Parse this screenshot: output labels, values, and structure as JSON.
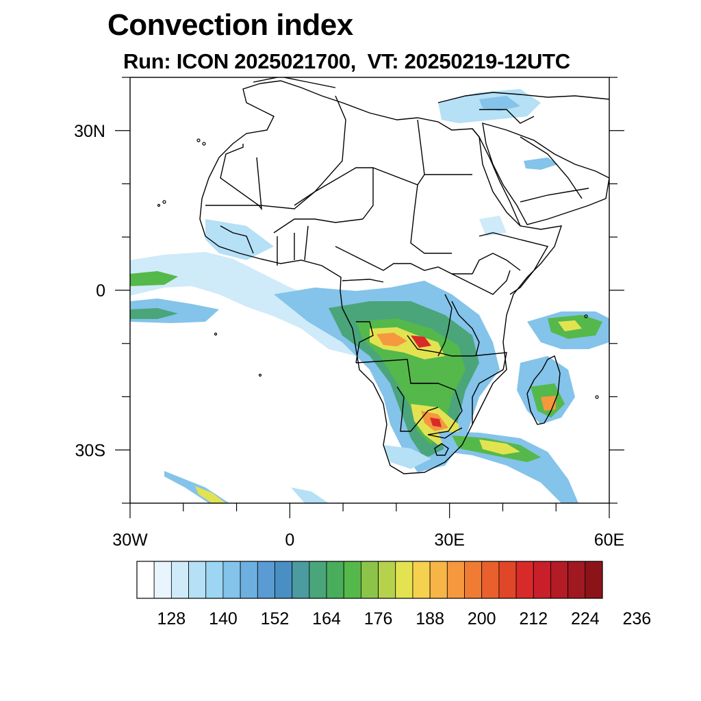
{
  "title": "Convection index",
  "subtitle": "Run: ICON 2025021700,  VT: 20250219-12UTC",
  "map": {
    "lon_range": [
      -30,
      60
    ],
    "lat_range": [
      -40,
      40
    ],
    "lat_ticks": [
      {
        "value": 30,
        "label": "30N"
      },
      {
        "value": 0,
        "label": "0"
      },
      {
        "value": -30,
        "label": "30S"
      }
    ],
    "lon_ticks": [
      {
        "value": -30,
        "label": "30W"
      },
      {
        "value": 0,
        "label": "0"
      },
      {
        "value": 30,
        "label": "30E"
      },
      {
        "value": 60,
        "label": "60E"
      }
    ]
  },
  "colorbar": {
    "labels": [
      "128",
      "140",
      "152",
      "164",
      "176",
      "188",
      "200",
      "212",
      "224",
      "236"
    ],
    "colors": [
      "#ffffff",
      "#e8f5fd",
      "#cfeaf9",
      "#b5e0f6",
      "#9cd6f3",
      "#84c3ea",
      "#6db0e0",
      "#5a9bd3",
      "#4a8fc4",
      "#4b9ba0",
      "#4aa57a",
      "#49ae5c",
      "#55b84a",
      "#8cc44a",
      "#b6d24c",
      "#e3e352",
      "#f5d14f",
      "#f7b547",
      "#f6983e",
      "#f07c34",
      "#e9602d",
      "#e04628",
      "#d92a2a",
      "#c91f2a",
      "#b31b25",
      "#a01820",
      "#8c1419"
    ]
  }
}
